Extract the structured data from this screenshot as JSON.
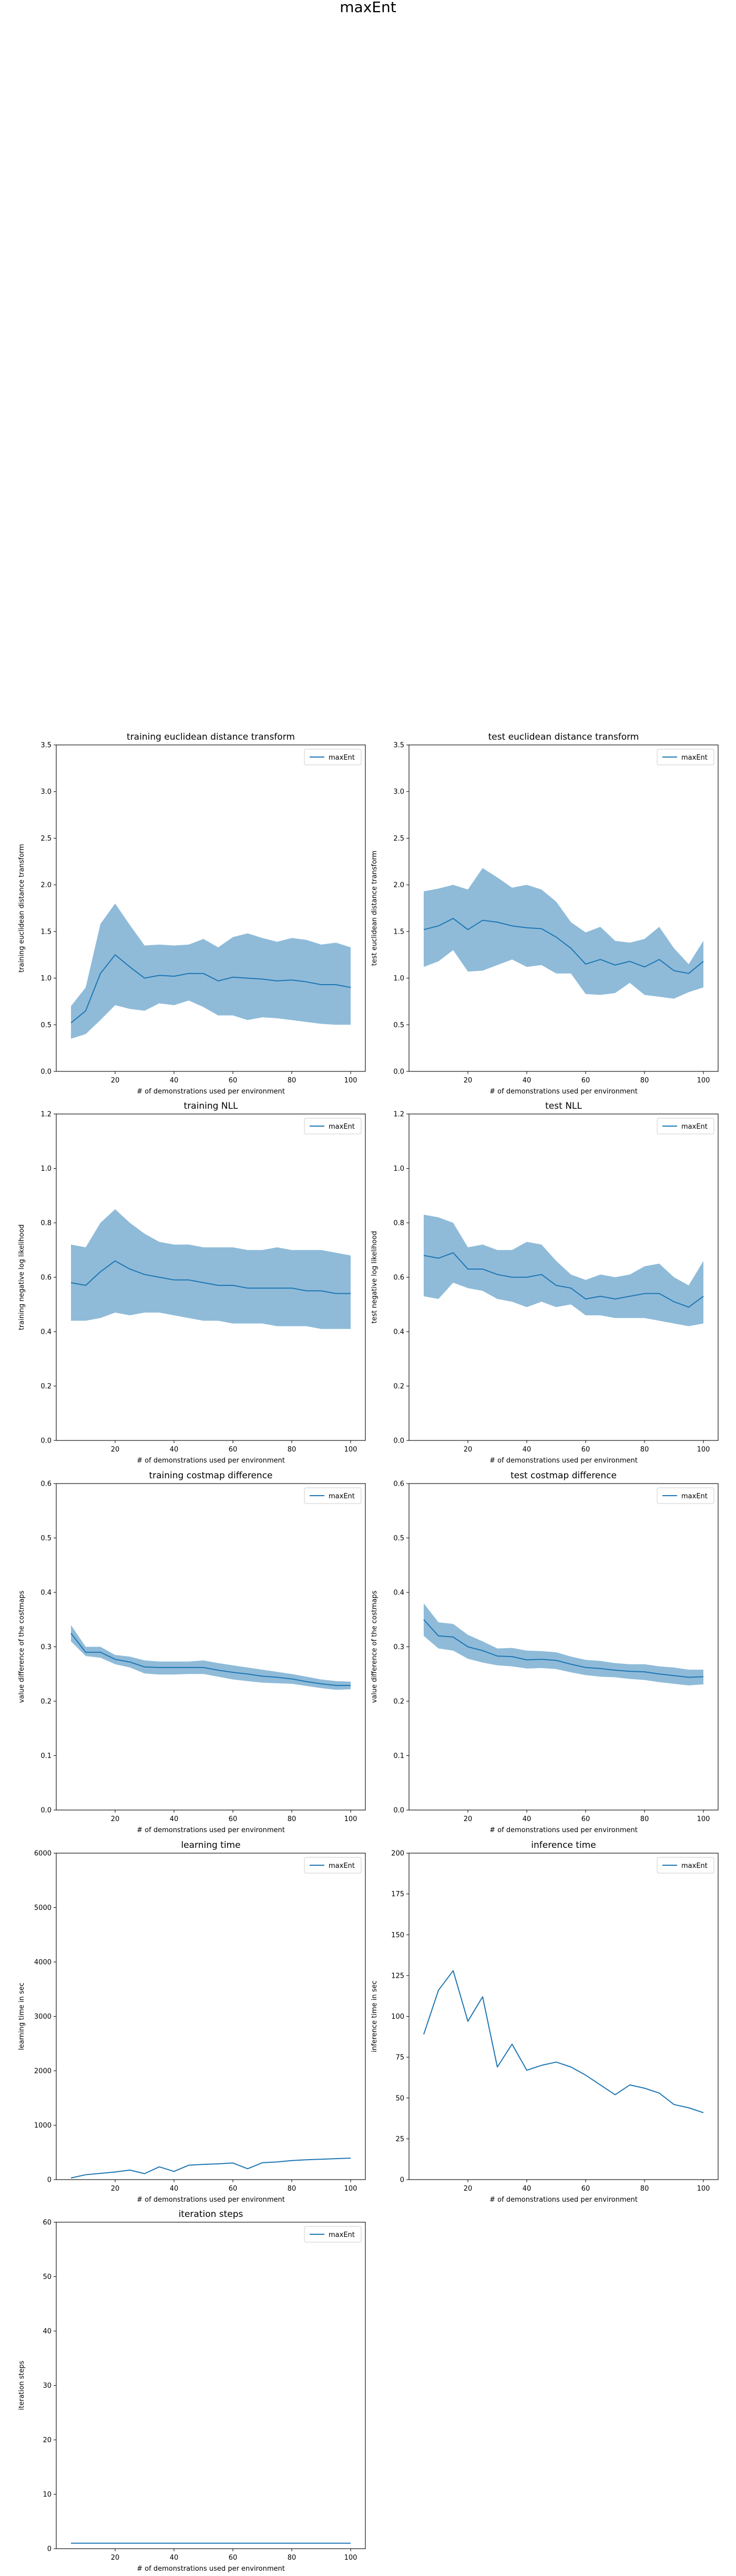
{
  "figure": {
    "suptitle": "maxEnt"
  },
  "chart_data": [
    {
      "type": "area",
      "title": "training euclidean distance transform",
      "xlabel": "# of demonstrations used per environment",
      "ylabel": "training euclidean distance transform",
      "xlim": [
        0,
        105
      ],
      "ylim": [
        0,
        3.5
      ],
      "xticks": [
        20,
        40,
        60,
        80,
        100
      ],
      "yticks": [
        0.0,
        0.5,
        1.0,
        1.5,
        2.0,
        2.5,
        3.0,
        3.5
      ],
      "ytick_decimals": 1,
      "legend": "top-right",
      "grid": false,
      "series": [
        {
          "name": "maxEnt",
          "color": "#1f77b4",
          "band_color": "#1f77b4",
          "x": [
            5,
            10,
            15,
            20,
            25,
            30,
            35,
            40,
            45,
            50,
            55,
            60,
            65,
            70,
            75,
            80,
            85,
            90,
            95,
            100
          ],
          "mean": [
            0.52,
            0.65,
            1.05,
            1.25,
            1.12,
            1.0,
            1.03,
            1.02,
            1.05,
            1.05,
            0.97,
            1.01,
            1.0,
            0.99,
            0.97,
            0.98,
            0.96,
            0.93,
            0.93,
            0.9
          ],
          "upper": [
            0.7,
            0.9,
            1.58,
            1.8,
            1.57,
            1.35,
            1.36,
            1.35,
            1.36,
            1.42,
            1.33,
            1.44,
            1.48,
            1.43,
            1.39,
            1.43,
            1.41,
            1.36,
            1.38,
            1.33
          ],
          "lower": [
            0.35,
            0.4,
            0.55,
            0.71,
            0.67,
            0.65,
            0.73,
            0.71,
            0.76,
            0.69,
            0.6,
            0.6,
            0.55,
            0.58,
            0.57,
            0.55,
            0.53,
            0.51,
            0.5,
            0.5
          ]
        }
      ]
    },
    {
      "type": "area",
      "title": "test euclidean distance transform",
      "xlabel": "# of demonstrations used per environment",
      "ylabel": "test euclidean distance transform",
      "xlim": [
        0,
        105
      ],
      "ylim": [
        0,
        3.5
      ],
      "xticks": [
        20,
        40,
        60,
        80,
        100
      ],
      "yticks": [
        0.0,
        0.5,
        1.0,
        1.5,
        2.0,
        2.5,
        3.0,
        3.5
      ],
      "ytick_decimals": 1,
      "legend": "top-right",
      "grid": false,
      "series": [
        {
          "name": "maxEnt",
          "color": "#1f77b4",
          "band_color": "#1f77b4",
          "x": [
            5,
            10,
            15,
            20,
            25,
            30,
            35,
            40,
            45,
            50,
            55,
            60,
            65,
            70,
            75,
            80,
            85,
            90,
            95,
            100
          ],
          "mean": [
            1.52,
            1.56,
            1.64,
            1.52,
            1.62,
            1.6,
            1.56,
            1.54,
            1.53,
            1.44,
            1.32,
            1.15,
            1.2,
            1.14,
            1.18,
            1.12,
            1.2,
            1.08,
            1.05,
            1.18
          ],
          "upper": [
            1.93,
            1.96,
            2.0,
            1.95,
            2.18,
            2.08,
            1.97,
            2.0,
            1.95,
            1.82,
            1.6,
            1.49,
            1.55,
            1.4,
            1.38,
            1.42,
            1.55,
            1.32,
            1.15,
            1.4
          ],
          "lower": [
            1.12,
            1.18,
            1.3,
            1.07,
            1.08,
            1.14,
            1.2,
            1.12,
            1.14,
            1.05,
            1.05,
            0.83,
            0.82,
            0.84,
            0.95,
            0.82,
            0.8,
            0.78,
            0.85,
            0.9
          ]
        }
      ]
    },
    {
      "type": "area",
      "title": "training NLL",
      "xlabel": "# of demonstrations used per environment",
      "ylabel": "training negative log likelihood",
      "xlim": [
        0,
        105
      ],
      "ylim": [
        0,
        1.2
      ],
      "xticks": [
        20,
        40,
        60,
        80,
        100
      ],
      "yticks": [
        0.0,
        0.2,
        0.4,
        0.6,
        0.8,
        1.0,
        1.2
      ],
      "ytick_decimals": 1,
      "legend": "top-right",
      "grid": false,
      "series": [
        {
          "name": "maxEnt",
          "color": "#1f77b4",
          "band_color": "#1f77b4",
          "x": [
            5,
            10,
            15,
            20,
            25,
            30,
            35,
            40,
            45,
            50,
            55,
            60,
            65,
            70,
            75,
            80,
            85,
            90,
            95,
            100
          ],
          "mean": [
            0.58,
            0.57,
            0.62,
            0.66,
            0.63,
            0.61,
            0.6,
            0.59,
            0.59,
            0.58,
            0.57,
            0.57,
            0.56,
            0.56,
            0.56,
            0.56,
            0.55,
            0.55,
            0.54,
            0.54
          ],
          "upper": [
            0.72,
            0.71,
            0.8,
            0.85,
            0.8,
            0.76,
            0.73,
            0.72,
            0.72,
            0.71,
            0.71,
            0.71,
            0.7,
            0.7,
            0.71,
            0.7,
            0.7,
            0.7,
            0.69,
            0.68
          ],
          "lower": [
            0.44,
            0.44,
            0.45,
            0.47,
            0.46,
            0.47,
            0.47,
            0.46,
            0.45,
            0.44,
            0.44,
            0.43,
            0.43,
            0.43,
            0.42,
            0.42,
            0.42,
            0.41,
            0.41,
            0.41
          ]
        }
      ]
    },
    {
      "type": "area",
      "title": "test NLL",
      "xlabel": "# of demonstrations used per environment",
      "ylabel": "test negative log likelihood",
      "xlim": [
        0,
        105
      ],
      "ylim": [
        0,
        1.2
      ],
      "xticks": [
        20,
        40,
        60,
        80,
        100
      ],
      "yticks": [
        0.0,
        0.2,
        0.4,
        0.6,
        0.8,
        1.0,
        1.2
      ],
      "ytick_decimals": 1,
      "legend": "top-right",
      "grid": false,
      "series": [
        {
          "name": "maxEnt",
          "color": "#1f77b4",
          "band_color": "#1f77b4",
          "x": [
            5,
            10,
            15,
            20,
            25,
            30,
            35,
            40,
            45,
            50,
            55,
            60,
            65,
            70,
            75,
            80,
            85,
            90,
            95,
            100
          ],
          "mean": [
            0.68,
            0.67,
            0.69,
            0.63,
            0.63,
            0.61,
            0.6,
            0.6,
            0.61,
            0.57,
            0.56,
            0.52,
            0.53,
            0.52,
            0.53,
            0.54,
            0.54,
            0.51,
            0.49,
            0.53
          ],
          "upper": [
            0.83,
            0.82,
            0.8,
            0.71,
            0.72,
            0.7,
            0.7,
            0.73,
            0.72,
            0.66,
            0.61,
            0.59,
            0.61,
            0.6,
            0.61,
            0.64,
            0.65,
            0.6,
            0.57,
            0.66
          ],
          "lower": [
            0.53,
            0.52,
            0.58,
            0.56,
            0.55,
            0.52,
            0.51,
            0.49,
            0.51,
            0.49,
            0.5,
            0.46,
            0.46,
            0.45,
            0.45,
            0.45,
            0.44,
            0.43,
            0.42,
            0.43
          ]
        }
      ]
    },
    {
      "type": "area",
      "title": "training costmap difference",
      "xlabel": "# of demonstrations used per environment",
      "ylabel": "value difference of the costmaps",
      "xlim": [
        0,
        105
      ],
      "ylim": [
        0,
        0.6
      ],
      "xticks": [
        20,
        40,
        60,
        80,
        100
      ],
      "yticks": [
        0.0,
        0.1,
        0.2,
        0.3,
        0.4,
        0.5,
        0.6
      ],
      "ytick_decimals": 1,
      "legend": "top-right",
      "grid": false,
      "series": [
        {
          "name": "maxEnt",
          "color": "#1f77b4",
          "band_color": "#1f77b4",
          "x": [
            5,
            10,
            15,
            20,
            25,
            30,
            35,
            40,
            45,
            50,
            55,
            60,
            65,
            70,
            75,
            80,
            85,
            90,
            95,
            100
          ],
          "mean": [
            0.325,
            0.29,
            0.29,
            0.277,
            0.272,
            0.263,
            0.262,
            0.262,
            0.262,
            0.262,
            0.257,
            0.253,
            0.25,
            0.246,
            0.244,
            0.241,
            0.236,
            0.232,
            0.229,
            0.229
          ],
          "upper": [
            0.34,
            0.3,
            0.3,
            0.285,
            0.282,
            0.275,
            0.273,
            0.273,
            0.273,
            0.275,
            0.27,
            0.266,
            0.262,
            0.258,
            0.254,
            0.25,
            0.245,
            0.24,
            0.237,
            0.236
          ],
          "lower": [
            0.31,
            0.283,
            0.28,
            0.268,
            0.262,
            0.251,
            0.249,
            0.249,
            0.25,
            0.25,
            0.245,
            0.24,
            0.237,
            0.234,
            0.233,
            0.232,
            0.228,
            0.224,
            0.221,
            0.222
          ]
        }
      ]
    },
    {
      "type": "area",
      "title": "test costmap difference",
      "xlabel": "# of demonstrations used per environment",
      "ylabel": "value difference of the costmaps",
      "xlim": [
        0,
        105
      ],
      "ylim": [
        0,
        0.6
      ],
      "xticks": [
        20,
        40,
        60,
        80,
        100
      ],
      "yticks": [
        0.0,
        0.1,
        0.2,
        0.3,
        0.4,
        0.5,
        0.6
      ],
      "ytick_decimals": 1,
      "legend": "top-right",
      "grid": false,
      "series": [
        {
          "name": "maxEnt",
          "color": "#1f77b4",
          "band_color": "#1f77b4",
          "x": [
            5,
            10,
            15,
            20,
            25,
            30,
            35,
            40,
            45,
            50,
            55,
            60,
            65,
            70,
            75,
            80,
            85,
            90,
            95,
            100
          ],
          "mean": [
            0.35,
            0.32,
            0.318,
            0.3,
            0.293,
            0.283,
            0.282,
            0.276,
            0.277,
            0.275,
            0.268,
            0.262,
            0.26,
            0.257,
            0.255,
            0.254,
            0.25,
            0.247,
            0.244,
            0.245
          ],
          "upper": [
            0.38,
            0.345,
            0.342,
            0.322,
            0.31,
            0.297,
            0.298,
            0.293,
            0.292,
            0.29,
            0.282,
            0.276,
            0.274,
            0.27,
            0.268,
            0.268,
            0.264,
            0.262,
            0.258,
            0.258
          ],
          "lower": [
            0.32,
            0.297,
            0.293,
            0.278,
            0.271,
            0.266,
            0.264,
            0.26,
            0.261,
            0.259,
            0.253,
            0.248,
            0.245,
            0.244,
            0.241,
            0.239,
            0.235,
            0.232,
            0.229,
            0.231
          ]
        }
      ]
    },
    {
      "type": "line",
      "title": "learning time",
      "xlabel": "# of demonstrations used per environment",
      "ylabel": "learning time in sec",
      "xlim": [
        0,
        105
      ],
      "ylim": [
        0,
        6000
      ],
      "xticks": [
        20,
        40,
        60,
        80,
        100
      ],
      "yticks": [
        0,
        1000,
        2000,
        3000,
        4000,
        5000,
        6000
      ],
      "ytick_decimals": 0,
      "legend": "top-right",
      "grid": false,
      "series": [
        {
          "name": "maxEnt",
          "color": "#1f77b4",
          "x": [
            5,
            10,
            15,
            20,
            25,
            30,
            35,
            40,
            45,
            50,
            55,
            60,
            65,
            70,
            75,
            80,
            85,
            90,
            95,
            100
          ],
          "mean": [
            30,
            90,
            115,
            140,
            175,
            110,
            235,
            150,
            265,
            280,
            290,
            305,
            200,
            310,
            325,
            350,
            365,
            375,
            385,
            395
          ]
        }
      ]
    },
    {
      "type": "line",
      "title": "inference time",
      "xlabel": "# of demonstrations used per environment",
      "ylabel": "inference time in sec",
      "xlim": [
        0,
        105
      ],
      "ylim": [
        0,
        200
      ],
      "xticks": [
        20,
        40,
        60,
        80,
        100
      ],
      "yticks": [
        0,
        25,
        50,
        75,
        100,
        125,
        150,
        175,
        200
      ],
      "ytick_decimals": 0,
      "legend": "top-right",
      "grid": false,
      "series": [
        {
          "name": "maxEnt",
          "color": "#1f77b4",
          "x": [
            5,
            10,
            15,
            20,
            25,
            30,
            35,
            40,
            45,
            50,
            55,
            60,
            65,
            70,
            75,
            80,
            85,
            90,
            95,
            100
          ],
          "mean": [
            89,
            116,
            128,
            97,
            112,
            69,
            83,
            67,
            70,
            72,
            69,
            64,
            58,
            52,
            58,
            56,
            53,
            46,
            44,
            41
          ]
        }
      ]
    },
    {
      "type": "line",
      "title": "iteration steps",
      "xlabel": "# of demonstrations used per environment",
      "ylabel": "iteration steps",
      "xlim": [
        0,
        105
      ],
      "ylim": [
        0,
        60
      ],
      "xticks": [
        20,
        40,
        60,
        80,
        100
      ],
      "yticks": [
        0,
        10,
        20,
        30,
        40,
        50,
        60
      ],
      "ytick_decimals": 0,
      "legend": "top-right",
      "grid": false,
      "series": [
        {
          "name": "maxEnt",
          "color": "#1f77b4",
          "x": [
            5,
            10,
            15,
            20,
            25,
            30,
            35,
            40,
            45,
            50,
            55,
            60,
            65,
            70,
            75,
            80,
            85,
            90,
            95,
            100
          ],
          "mean": [
            1,
            1,
            1,
            1,
            1,
            1,
            1,
            1,
            1,
            1,
            1,
            1,
            1,
            1,
            1,
            1,
            1,
            1,
            1,
            1
          ]
        }
      ]
    }
  ]
}
